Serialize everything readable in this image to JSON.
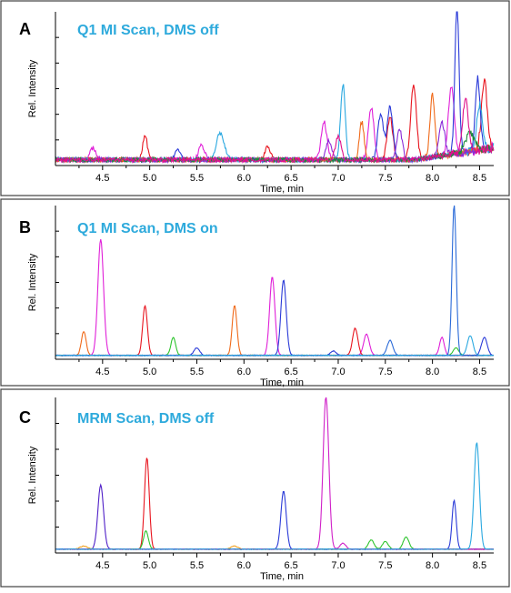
{
  "figure": {
    "border_color": "#404040",
    "title_color": "#2eaadc"
  },
  "chart_data": [
    {
      "type": "line",
      "panel_letter": "A",
      "title": "Q1 MI Scan, DMS off",
      "xlabel": "Time, min",
      "ylabel": "Rel. Intensity",
      "xlim": [
        4.0,
        8.65
      ],
      "ylim": [
        0,
        1
      ],
      "xticks": [
        "4.5",
        "5.0",
        "5.5",
        "6.0",
        "6.5",
        "7.0",
        "7.5",
        "8.0",
        "8.5"
      ],
      "grid": false,
      "legend": "none",
      "baseline_noise": 0.03,
      "series": [
        {
          "color": "#e8141e",
          "peaks": [
            [
              4.95,
              0.16,
              0.025
            ],
            [
              6.25,
              0.08,
              0.03
            ],
            [
              7.55,
              0.28,
              0.03
            ],
            [
              7.8,
              0.5,
              0.03
            ],
            [
              8.55,
              0.45,
              0.03
            ]
          ]
        },
        {
          "color": "#e020d8",
          "peaks": [
            [
              4.4,
              0.08,
              0.03
            ],
            [
              5.55,
              0.1,
              0.03
            ],
            [
              6.85,
              0.25,
              0.03
            ],
            [
              7.35,
              0.35,
              0.03
            ],
            [
              8.2,
              0.45,
              0.03
            ]
          ]
        },
        {
          "color": "#2a3ad8",
          "peaks": [
            [
              5.3,
              0.06,
              0.03
            ],
            [
              7.45,
              0.3,
              0.03
            ],
            [
              7.55,
              0.35,
              0.03
            ],
            [
              8.26,
              1.0,
              0.022
            ],
            [
              8.48,
              0.48,
              0.025
            ]
          ]
        },
        {
          "color": "#2aa8e0",
          "peaks": [
            [
              5.75,
              0.18,
              0.04
            ],
            [
              7.05,
              0.5,
              0.025
            ],
            [
              8.5,
              0.3,
              0.03
            ]
          ]
        },
        {
          "color": "#f06a1a",
          "peaks": [
            [
              7.25,
              0.25,
              0.025
            ],
            [
              8.0,
              0.42,
              0.025
            ]
          ]
        },
        {
          "color": "#8a2ad8",
          "peaks": [
            [
              6.9,
              0.12,
              0.03
            ],
            [
              7.65,
              0.2,
              0.03
            ],
            [
              8.1,
              0.22,
              0.03
            ]
          ]
        },
        {
          "color": "#1a8a3a",
          "peaks": [
            [
              8.4,
              0.12,
              0.05
            ]
          ]
        },
        {
          "color": "#e0108a",
          "peaks": [
            [
              7.0,
              0.15,
              0.03
            ],
            [
              8.35,
              0.35,
              0.03
            ]
          ]
        }
      ]
    },
    {
      "type": "line",
      "panel_letter": "B",
      "title": "Q1 MI Scan, DMS on",
      "xlabel": "Time, min",
      "ylabel": "Rel. Intensity",
      "xlim": [
        4.0,
        8.65
      ],
      "ylim": [
        0,
        1
      ],
      "xticks": [
        "4.5",
        "5.0",
        "5.5",
        "6.0",
        "6.5",
        "7.0",
        "7.5",
        "8.0",
        "8.5"
      ],
      "grid": false,
      "legend": "none",
      "baseline_noise": 0.005,
      "series": [
        {
          "color": "#f06a1a",
          "peaks": [
            [
              4.3,
              0.16,
              0.025
            ],
            [
              5.9,
              0.33,
              0.025
            ]
          ]
        },
        {
          "color": "#e020d8",
          "peaks": [
            [
              4.48,
              0.77,
              0.03
            ],
            [
              6.3,
              0.52,
              0.028
            ],
            [
              7.3,
              0.14,
              0.03
            ],
            [
              8.1,
              0.12,
              0.025
            ]
          ]
        },
        {
          "color": "#e8141e",
          "peaks": [
            [
              4.95,
              0.33,
              0.025
            ],
            [
              7.18,
              0.18,
              0.028
            ]
          ]
        },
        {
          "color": "#2ec42e",
          "peaks": [
            [
              5.25,
              0.12,
              0.025
            ],
            [
              8.25,
              0.05,
              0.03
            ]
          ]
        },
        {
          "color": "#2a3ad8",
          "peaks": [
            [
              5.5,
              0.05,
              0.03
            ],
            [
              6.42,
              0.5,
              0.028
            ],
            [
              6.95,
              0.03,
              0.03
            ],
            [
              8.55,
              0.12,
              0.03
            ]
          ]
        },
        {
          "color": "#2a6ad8",
          "peaks": [
            [
              7.55,
              0.1,
              0.03
            ],
            [
              8.23,
              1.0,
              0.022
            ]
          ]
        },
        {
          "color": "#2aa8e0",
          "peaks": [
            [
              8.4,
              0.13,
              0.03
            ]
          ]
        }
      ]
    },
    {
      "type": "line",
      "panel_letter": "C",
      "title": "MRM Scan, DMS off",
      "xlabel": "Time, min",
      "ylabel": "Rel. Intensity",
      "xlim": [
        4.0,
        8.65
      ],
      "ylim": [
        0,
        1
      ],
      "xticks": [
        "4.5",
        "5.0",
        "5.5",
        "6.0",
        "6.5",
        "7.0",
        "7.5",
        "8.0",
        "8.5"
      ],
      "grid": false,
      "legend": "none",
      "baseline_noise": 0.004,
      "series": [
        {
          "color": "#5020c8",
          "peaks": [
            [
              4.48,
              0.42,
              0.03
            ]
          ]
        },
        {
          "color": "#e8141e",
          "peaks": [
            [
              4.97,
              0.6,
              0.025
            ]
          ]
        },
        {
          "color": "#2ec42e",
          "peaks": [
            [
              4.96,
              0.12,
              0.025
            ],
            [
              7.35,
              0.06,
              0.03
            ],
            [
              7.5,
              0.05,
              0.03
            ],
            [
              7.72,
              0.08,
              0.03
            ]
          ]
        },
        {
          "color": "#f0a020",
          "peaks": [
            [
              4.3,
              0.02,
              0.04
            ],
            [
              5.9,
              0.02,
              0.04
            ]
          ]
        },
        {
          "color": "#2a3ad8",
          "peaks": [
            [
              6.42,
              0.38,
              0.028
            ],
            [
              8.23,
              0.32,
              0.022
            ]
          ]
        },
        {
          "color": "#d020c8",
          "peaks": [
            [
              6.87,
              1.0,
              0.03
            ],
            [
              7.05,
              0.04,
              0.03
            ]
          ]
        },
        {
          "color": "#2aa8e0",
          "peaks": [
            [
              8.47,
              0.7,
              0.028
            ]
          ]
        }
      ]
    }
  ]
}
